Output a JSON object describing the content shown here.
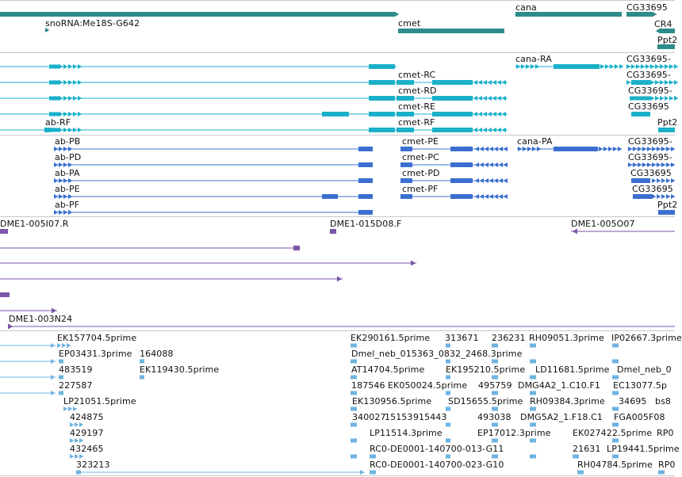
{
  "colors": {
    "gene": "#2e8b8b",
    "transcript_rna": "#1ab0c8",
    "transcript_protein": "#3a6fd0",
    "clone": "#7a55a8",
    "est": "#6fb3e0",
    "separator": "#c8c8c8"
  },
  "tracks": {
    "genes": {
      "labels": [
        "snoRNA:Me18S-G642",
        "cmet",
        "cana",
        "CG33695",
        "CR4",
        "Ppt2"
      ]
    },
    "rna_transcripts": {
      "labels": [
        "cana-RA",
        "CG33695-",
        "cmet-RC",
        "CG33695-",
        "cmet-RD",
        "CG33695-",
        "cmet-RE",
        "CG33695",
        "ab-RF",
        "cmet-RF",
        "Ppt2"
      ]
    },
    "protein_transcripts": {
      "labels": [
        "ab-PB",
        "cmet-PE",
        "cana-PA",
        "CG33695-",
        "ab-PD",
        "cmet-PC",
        "CG33695-",
        "ab-PA",
        "cmet-PD",
        "CG33695",
        "ab-PE",
        "cmet-PF",
        "CG33695",
        "ab-PF",
        "Ppt2"
      ]
    },
    "clones": {
      "labels": [
        "DME1-005I07.R",
        "DME1-015D08.F",
        "DME1-005O07",
        "DME1-003N24"
      ]
    },
    "ests": {
      "labels": [
        "EK157704.5prime",
        "EK290161.5prime",
        "313671",
        "236231",
        "RH09051.3prime",
        "IP02667.3prime",
        "EP03431.3prime",
        "164088",
        "Dmel_neb_015363_0832_2468.3prime",
        "483519",
        "EK119430.5prime",
        "AT14704.5prime",
        "EK195210.5prime",
        "LD11681.5prime",
        "Dmel_neb_0",
        "227587",
        "187546",
        "EK050024.5prime",
        "495759",
        "DMG4A2_1.C10.F1",
        "EC13077.5p",
        "LP21051.5prime",
        "EK130956.5prime",
        "SD15655.5prime",
        "RH09384.3prime",
        "34695",
        "bs8",
        "424875",
        "340027",
        "15153",
        "9",
        "15443",
        "493038",
        "DMG5A2_1.F18.C1",
        "FGA005F08",
        "429197",
        "LP11514.3prime",
        "EP17012.3prime",
        "EK027422.5prime",
        "RP0",
        "432465",
        "RC0-DE0001-140700-013-G11",
        "21631",
        "LP19441.5prime",
        "323213",
        "RC0-DE0001-140700-023-G10",
        "RH04784.5prime",
        "RP0"
      ]
    }
  }
}
